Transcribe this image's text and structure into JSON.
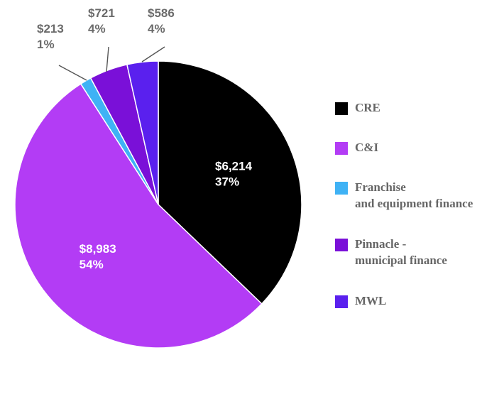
{
  "chart_data": {
    "type": "pie",
    "title": "",
    "slices": [
      {
        "name": "CRE",
        "value": 6214,
        "value_label": "$6,214",
        "percent_label": "37%",
        "color": "#000000",
        "label_position": "inside"
      },
      {
        "name": "C&I",
        "value": 8983,
        "value_label": "$8,983",
        "percent_label": "54%",
        "color": "#b33cf5",
        "label_position": "inside"
      },
      {
        "name": "Franchise and equipment finance",
        "value": 213,
        "value_label": "$213",
        "percent_label": "1%",
        "color": "#3fb2f5",
        "label_position": "outside"
      },
      {
        "name": "Pinnacle - municipal finance",
        "value": 721,
        "value_label": "$721",
        "percent_label": "4%",
        "color": "#7a10d8",
        "label_position": "outside"
      },
      {
        "name": "MWL",
        "value": 586,
        "value_label": "$586",
        "percent_label": "4%",
        "color": "#5a20ee",
        "label_position": "outside"
      }
    ],
    "legend_placement": "right"
  },
  "legend": {
    "items": [
      {
        "lines": [
          "CRE"
        ],
        "color": "#000000"
      },
      {
        "lines": [
          "C&I"
        ],
        "color": "#b33cf5"
      },
      {
        "lines": [
          "Franchise",
          "and equipment finance"
        ],
        "color": "#3fb2f5"
      },
      {
        "lines": [
          "Pinnacle -",
          "municipal finance"
        ],
        "color": "#7a10d8"
      },
      {
        "lines": [
          "MWL"
        ],
        "color": "#5a20ee"
      }
    ]
  }
}
